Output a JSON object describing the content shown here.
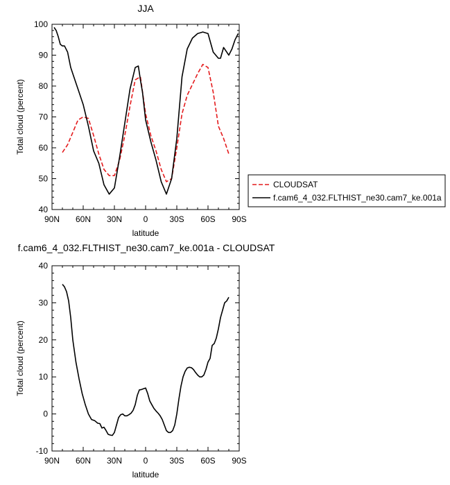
{
  "chart_data": [
    {
      "type": "line",
      "title": "JJA",
      "xlabel": "latitude",
      "ylabel": "Total cloud (percent)",
      "xlim": [
        90,
        -90
      ],
      "ylim": [
        40,
        100
      ],
      "x_ticks": [
        90,
        60,
        30,
        0,
        -30,
        -60,
        -90
      ],
      "x_tick_labels": [
        "90N",
        "60N",
        "30N",
        "0",
        "30S",
        "60S",
        "90S"
      ],
      "y_ticks": [
        40,
        50,
        60,
        70,
        80,
        90,
        100
      ],
      "y_tick_labels": [
        "40",
        "50",
        "60",
        "70",
        "80",
        "90",
        "100"
      ],
      "legend_position": "right",
      "series": [
        {
          "name": "CLOUDSAT",
          "color": "#e41a1c",
          "dash": "dashed",
          "x": [
            80,
            75,
            70,
            65,
            60,
            55,
            50,
            45,
            40,
            35,
            30,
            25,
            20,
            15,
            10,
            5,
            0,
            -5,
            -10,
            -15,
            -20,
            -25,
            -30,
            -35,
            -40,
            -45,
            -50,
            -55,
            -60,
            -65,
            -70,
            -75,
            -80
          ],
          "y": [
            58.5,
            61,
            65,
            69,
            70,
            69.5,
            64,
            58,
            53,
            51,
            51,
            56,
            64,
            73.5,
            82,
            83,
            71,
            64,
            59,
            53,
            49,
            50,
            60,
            71,
            77,
            80.5,
            84,
            87,
            86,
            78,
            67,
            63,
            58
          ]
        },
        {
          "name": "f.cam6_4_032.FLTHIST_ne30.cam7_ke.001a",
          "color": "#000000",
          "dash": "solid",
          "x": [
            88,
            86,
            84,
            82,
            80,
            78,
            75,
            72,
            70,
            65,
            60,
            55,
            50,
            45,
            40,
            35,
            30,
            25,
            20,
            15,
            10,
            7,
            5,
            3,
            0,
            -5,
            -10,
            -15,
            -20,
            -25,
            -30,
            -35,
            -40,
            -45,
            -50,
            -55,
            -60,
            -65,
            -70,
            -72,
            -75,
            -78,
            -80,
            -83,
            -86,
            -89
          ],
          "y": [
            99,
            98,
            96,
            93.5,
            93,
            93,
            91,
            86,
            84,
            79,
            74,
            67,
            59,
            55,
            48,
            45,
            47,
            57,
            68,
            79,
            86,
            86.5,
            82,
            78,
            69,
            62,
            56,
            49,
            45,
            50,
            63,
            83,
            92,
            95.5,
            97,
            97.5,
            97,
            91,
            89,
            89,
            92.5,
            91,
            90,
            92,
            95,
            97
          ]
        }
      ]
    },
    {
      "type": "line",
      "title": "f.cam6_4_032.FLTHIST_ne30.cam7_ke.001a - CLOUDSAT",
      "xlabel": "latitude",
      "ylabel": "Total cloud (percent)",
      "xlim": [
        90,
        -90
      ],
      "ylim": [
        -10,
        40
      ],
      "x_ticks": [
        90,
        60,
        30,
        0,
        -30,
        -60,
        -90
      ],
      "x_tick_labels": [
        "90N",
        "60N",
        "30N",
        "0",
        "30S",
        "60S",
        "90S"
      ],
      "y_ticks": [
        -10,
        0,
        10,
        20,
        30,
        40
      ],
      "y_tick_labels": [
        "-10",
        "0",
        "10",
        "20",
        "30",
        "40"
      ],
      "series": [
        {
          "color": "#000000",
          "dash": "solid",
          "x": [
            80,
            78,
            76,
            74,
            72,
            70,
            67,
            64,
            61,
            58,
            55,
            52,
            49,
            46,
            44,
            42,
            40,
            38,
            36,
            34,
            32,
            30,
            28,
            26,
            24,
            22,
            20,
            18,
            16,
            14,
            12,
            10,
            8,
            6,
            4,
            2,
            0,
            -2,
            -4,
            -6,
            -8,
            -10,
            -12,
            -14,
            -16,
            -18,
            -20,
            -22,
            -24,
            -26,
            -28,
            -30,
            -32,
            -34,
            -36,
            -38,
            -40,
            -42,
            -44,
            -46,
            -48,
            -50,
            -52,
            -54,
            -56,
            -58,
            -60,
            -62,
            -64,
            -66,
            -68,
            -70,
            -72,
            -74,
            -76,
            -78,
            -80
          ],
          "y": [
            35,
            34.3,
            33,
            30.5,
            26,
            20,
            14,
            9.5,
            5.5,
            2.5,
            0,
            -1.5,
            -1.8,
            -2.5,
            -2.6,
            -3.8,
            -3.6,
            -4.5,
            -5.5,
            -5.7,
            -5.8,
            -5,
            -3,
            -1,
            -0.2,
            0,
            -0.5,
            -0.5,
            -0.2,
            0.2,
            1,
            2.5,
            5,
            6.5,
            6.6,
            6.8,
            7,
            5.5,
            3.5,
            2.5,
            1.5,
            0.8,
            0.2,
            -0.5,
            -1.5,
            -3,
            -4.5,
            -5,
            -5,
            -4.5,
            -3,
            0,
            4,
            7.5,
            10,
            11.5,
            12.4,
            12.6,
            12.5,
            12,
            11.2,
            10.5,
            10,
            10,
            10.5,
            12,
            14,
            15,
            18.5,
            19,
            20.5,
            23,
            26,
            28,
            30,
            30.5,
            31.5
          ]
        }
      ]
    }
  ]
}
